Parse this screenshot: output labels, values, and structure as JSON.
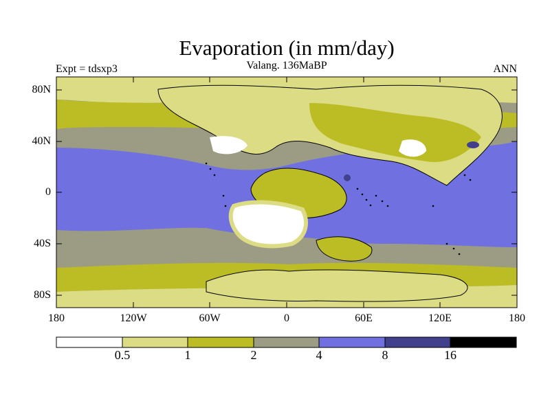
{
  "title": "Evaporation (in mm/day)",
  "subtitle": "Valang. 136MaBP",
  "expt_label": "Expt = tdsxp3",
  "season": "ANN",
  "axes": {
    "y_ticks": [
      "80N",
      "40N",
      "0",
      "40S",
      "80S"
    ],
    "x_ticks": [
      "180",
      "120W",
      "60W",
      "0",
      "60E",
      "120E",
      "180"
    ]
  },
  "colorbar": {
    "levels": [
      "0.5",
      "1",
      "2",
      "4",
      "8",
      "16"
    ],
    "colors": [
      "#ffffff",
      "#dcdc84",
      "#bcbc24",
      "#9c9c84",
      "#7070e0",
      "#40408c",
      "#000000"
    ]
  }
}
